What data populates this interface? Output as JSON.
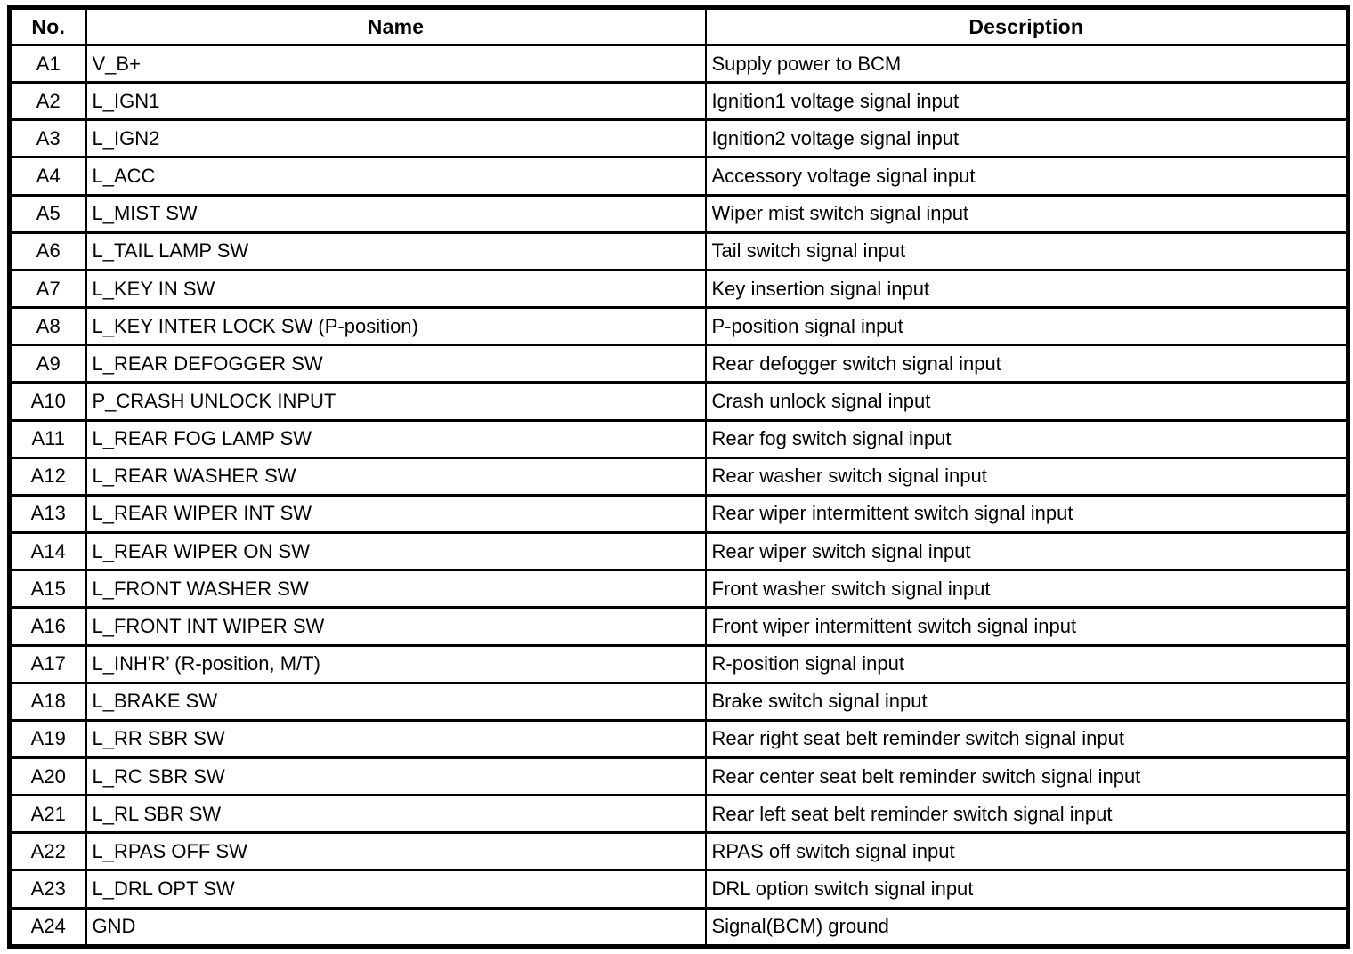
{
  "table": {
    "headers": [
      "No.",
      "Name",
      "Description"
    ],
    "rows": [
      {
        "no": "A1",
        "name": "V_B+",
        "description": "Supply power to BCM"
      },
      {
        "no": "A2",
        "name": "L_IGN1",
        "description": "Ignition1 voltage signal input"
      },
      {
        "no": "A3",
        "name": "L_IGN2",
        "description": "Ignition2 voltage signal input"
      },
      {
        "no": "A4",
        "name": "L_ACC",
        "description": "Accessory voltage signal input"
      },
      {
        "no": "A5",
        "name": "L_MIST SW",
        "description": "Wiper mist switch signal input"
      },
      {
        "no": "A6",
        "name": "L_TAIL LAMP SW",
        "description": "Tail switch signal input"
      },
      {
        "no": "A7",
        "name": "L_KEY IN SW",
        "description": "Key insertion signal input"
      },
      {
        "no": "A8",
        "name": "L_KEY INTER LOCK SW (P-position)",
        "description": "P-position signal input"
      },
      {
        "no": "A9",
        "name": "L_REAR DEFOGGER SW",
        "description": "Rear defogger switch signal input"
      },
      {
        "no": "A10",
        "name": "P_CRASH UNLOCK INPUT",
        "description": "Crash unlock signal input"
      },
      {
        "no": "A11",
        "name": "L_REAR FOG LAMP SW",
        "description": "Rear fog switch signal input"
      },
      {
        "no": "A12",
        "name": "L_REAR WASHER SW",
        "description": "Rear washer switch signal input"
      },
      {
        "no": "A13",
        "name": "L_REAR WIPER INT SW",
        "description": "Rear wiper intermittent switch signal input"
      },
      {
        "no": "A14",
        "name": "L_REAR WIPER ON SW",
        "description": "Rear wiper switch signal input"
      },
      {
        "no": "A15",
        "name": "L_FRONT WASHER SW",
        "description": "Front washer switch signal input"
      },
      {
        "no": "A16",
        "name": "L_FRONT INT WIPER SW",
        "description": "Front wiper intermittent switch signal input"
      },
      {
        "no": "A17",
        "name": "L_INH'R’ (R-position, M/T)",
        "description": "R-position signal input"
      },
      {
        "no": "A18",
        "name": "L_BRAKE SW",
        "description": "Brake switch signal input"
      },
      {
        "no": "A19",
        "name": "L_RR SBR SW",
        "description": "Rear right seat belt reminder switch signal input"
      },
      {
        "no": "A20",
        "name": "L_RC SBR SW",
        "description": "Rear center seat belt reminder switch signal input"
      },
      {
        "no": "A21",
        "name": "L_RL SBR SW",
        "description": "Rear left seat belt reminder switch signal input"
      },
      {
        "no": "A22",
        "name": "L_RPAS OFF SW",
        "description": "RPAS off switch signal input"
      },
      {
        "no": "A23",
        "name": "L_DRL OPT SW",
        "description": "DRL option switch signal input"
      },
      {
        "no": "A24",
        "name": "GND",
        "description": "Signal(BCM) ground"
      }
    ]
  }
}
